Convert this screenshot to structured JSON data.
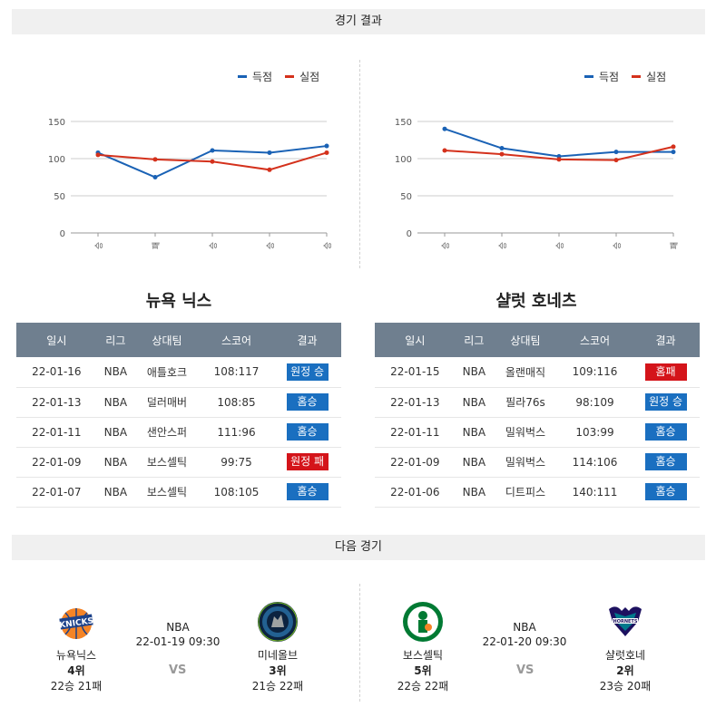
{
  "sections": {
    "results_title": "경기 결과",
    "next_title": "다음 경기"
  },
  "legend": {
    "scored": "득점",
    "conceded": "실점"
  },
  "colors": {
    "scored": "#1a62b5",
    "conceded": "#d4311c",
    "win": "#1a6fc0",
    "loss": "#d4141a",
    "header": "#6f7f8f"
  },
  "left_team": {
    "name": "뉴욕 닉스",
    "chart_data": {
      "type": "line",
      "categories": [
        "승",
        "패",
        "승",
        "승",
        "승"
      ],
      "ylim": [
        0,
        150
      ],
      "yticks": [
        0,
        50,
        100,
        150
      ],
      "series": [
        {
          "name": "득점",
          "values": [
            108,
            75,
            111,
            108,
            117
          ]
        },
        {
          "name": "실점",
          "values": [
            105,
            99,
            96,
            85,
            108
          ]
        }
      ]
    },
    "table": {
      "headers": [
        "일시",
        "리그",
        "상대팀",
        "스코어",
        "결과"
      ],
      "rows": [
        {
          "date": "22-01-16",
          "league": "NBA",
          "opponent": "애틀호크",
          "score": "108:117",
          "result": "원정 승",
          "win": true
        },
        {
          "date": "22-01-13",
          "league": "NBA",
          "opponent": "덜러매버",
          "score": "108:85",
          "result": "홈승",
          "win": true
        },
        {
          "date": "22-01-11",
          "league": "NBA",
          "opponent": "샌안스퍼",
          "score": "111:96",
          "result": "홈승",
          "win": true
        },
        {
          "date": "22-01-09",
          "league": "NBA",
          "opponent": "보스셀틱",
          "score": "99:75",
          "result": "원정 패",
          "win": false
        },
        {
          "date": "22-01-07",
          "league": "NBA",
          "opponent": "보스셀틱",
          "score": "108:105",
          "result": "홈승",
          "win": true
        }
      ]
    }
  },
  "right_team": {
    "name": "샬럿 호네츠",
    "chart_data": {
      "type": "line",
      "categories": [
        "승",
        "승",
        "승",
        "승",
        "패"
      ],
      "ylim": [
        0,
        150
      ],
      "yticks": [
        0,
        50,
        100,
        150
      ],
      "series": [
        {
          "name": "득점",
          "values": [
            140,
            114,
            103,
            109,
            109
          ]
        },
        {
          "name": "실점",
          "values": [
            111,
            106,
            99,
            98,
            116
          ]
        }
      ]
    },
    "table": {
      "headers": [
        "일시",
        "리그",
        "상대팀",
        "스코어",
        "결과"
      ],
      "rows": [
        {
          "date": "22-01-15",
          "league": "NBA",
          "opponent": "올랜매직",
          "score": "109:116",
          "result": "홈패",
          "win": false
        },
        {
          "date": "22-01-13",
          "league": "NBA",
          "opponent": "필라76s",
          "score": "98:109",
          "result": "원정 승",
          "win": true
        },
        {
          "date": "22-01-11",
          "league": "NBA",
          "opponent": "밀워벅스",
          "score": "103:99",
          "result": "홈승",
          "win": true
        },
        {
          "date": "22-01-09",
          "league": "NBA",
          "opponent": "밀워벅스",
          "score": "114:106",
          "result": "홈승",
          "win": true
        },
        {
          "date": "22-01-06",
          "league": "NBA",
          "opponent": "디트피스",
          "score": "140:111",
          "result": "홈승",
          "win": true
        }
      ]
    }
  },
  "next_games": [
    {
      "league": "NBA",
      "datetime": "22-01-19 09:30",
      "vs": "VS",
      "home": {
        "name": "뉴욕닉스",
        "rank": "4위",
        "record": "22승 21패",
        "icon": "knicks-logo"
      },
      "away": {
        "name": "미네올브",
        "rank": "3위",
        "record": "21승 22패",
        "icon": "timberwolves-logo"
      }
    },
    {
      "league": "NBA",
      "datetime": "22-01-20 09:30",
      "vs": "VS",
      "home": {
        "name": "보스셀틱",
        "rank": "5위",
        "record": "22승 22패",
        "icon": "celtics-logo"
      },
      "away": {
        "name": "샬럿호네",
        "rank": "2위",
        "record": "23승 20패",
        "icon": "hornets-logo"
      }
    }
  ]
}
